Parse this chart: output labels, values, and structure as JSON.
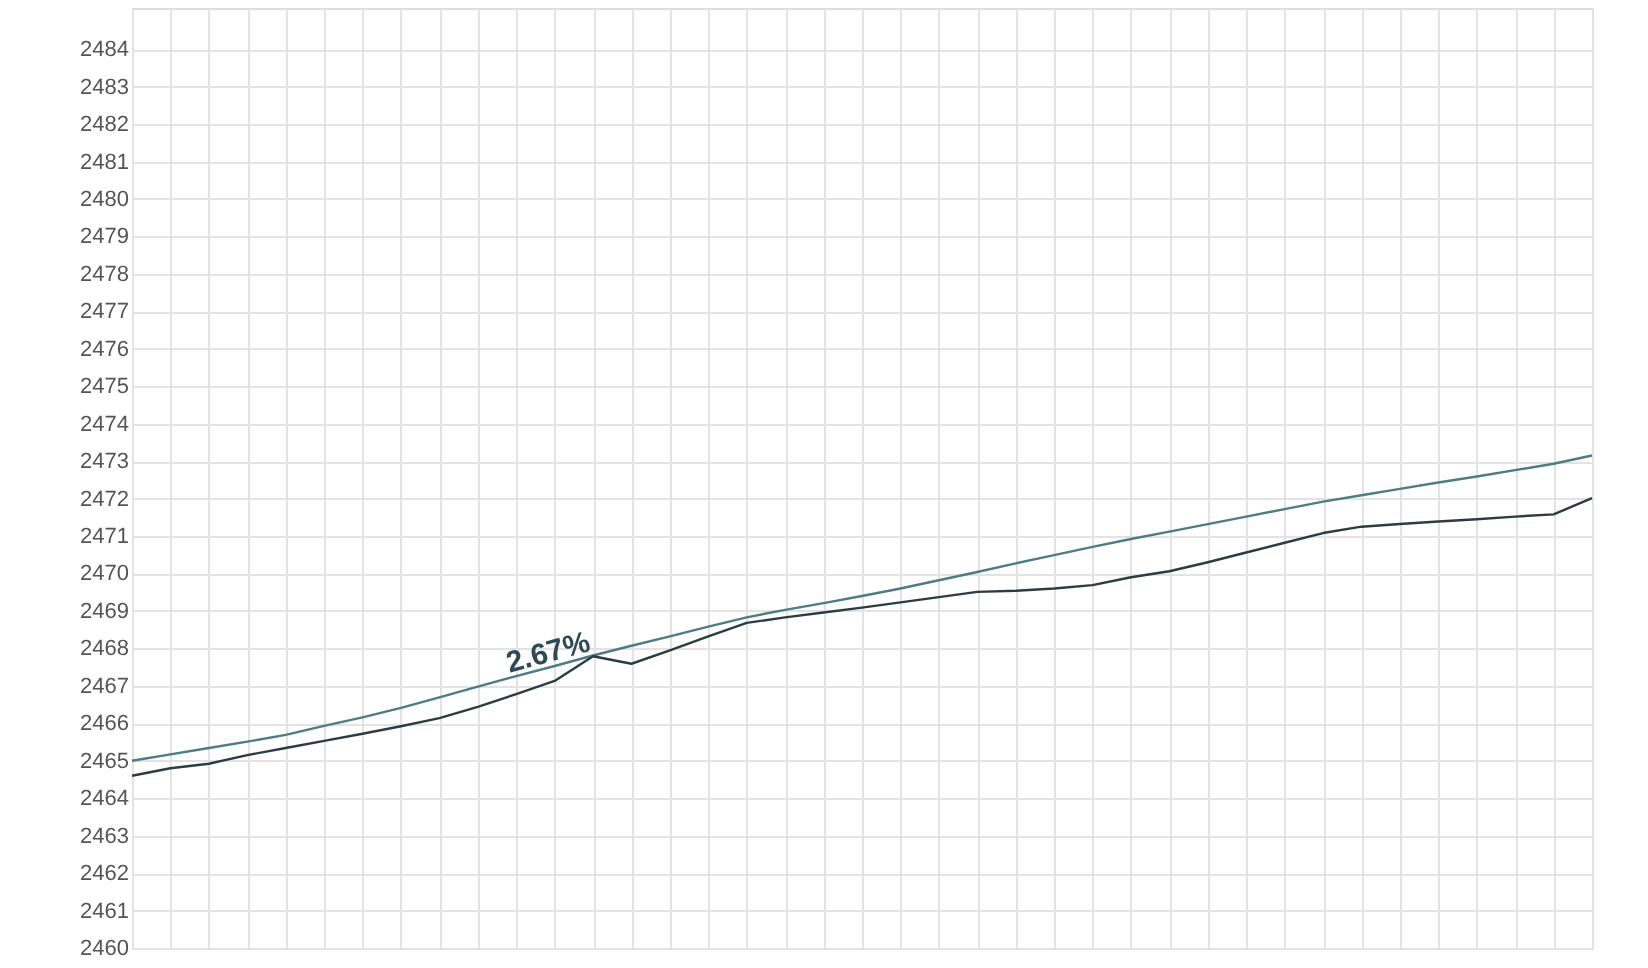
{
  "chart_data": {
    "type": "line",
    "categories": [
      null,
      null,
      null,
      null,
      null,
      null,
      null,
      null,
      null,
      null,
      null,
      null,
      null,
      null,
      null,
      null,
      null,
      null,
      null,
      null,
      null,
      null,
      null,
      null,
      null,
      null,
      null,
      null,
      null,
      null,
      null,
      null,
      null,
      null,
      null,
      null,
      null,
      null,
      null
    ],
    "ylim": [
      2460,
      2485.1
    ],
    "yticks": [
      2460,
      2461,
      2462,
      2463,
      2464,
      2465,
      2466,
      2467,
      2468,
      2469,
      2470,
      2471,
      2472,
      2473,
      2474,
      2475,
      2476,
      2477,
      2478,
      2479,
      2480,
      2481,
      2482,
      2483,
      2484
    ],
    "grid": true,
    "tick_labels": "y",
    "line_style": "solid",
    "series": [
      {
        "color": "#4d7c82",
        "values": [
          2465.0,
          2465.17,
          2465.34,
          2465.51,
          2465.69,
          2465.93,
          2466.16,
          2466.41,
          2466.69,
          2466.98,
          2467.26,
          2467.53,
          2467.81,
          2468.07,
          2468.32,
          2468.58,
          2468.83,
          2469.03,
          2469.21,
          2469.4,
          2469.6,
          2469.82,
          2470.04,
          2470.27,
          2470.49,
          2470.71,
          2470.92,
          2471.12,
          2471.32,
          2471.52,
          2471.72,
          2471.92,
          2472.09,
          2472.26,
          2472.43,
          2472.59,
          2472.76,
          2472.93,
          2473.15
        ]
      },
      {
        "color": "#2b3d40",
        "values": [
          2464.6,
          2464.8,
          2464.92,
          2465.15,
          2465.34,
          2465.53,
          2465.72,
          2465.92,
          2466.14,
          2466.44,
          2466.78,
          2467.13,
          2467.79,
          2467.59,
          2467.95,
          2468.32,
          2468.68,
          2468.83,
          2468.96,
          2469.09,
          2469.23,
          2469.37,
          2469.51,
          2469.54,
          2469.6,
          2469.69,
          2469.9,
          2470.06,
          2470.3,
          2470.56,
          2470.82,
          2471.08,
          2471.25,
          2471.32,
          2471.39,
          2471.45,
          2471.52,
          2471.58,
          2472.01
        ]
      }
    ],
    "annotations": [
      "2.67%"
    ]
  }
}
